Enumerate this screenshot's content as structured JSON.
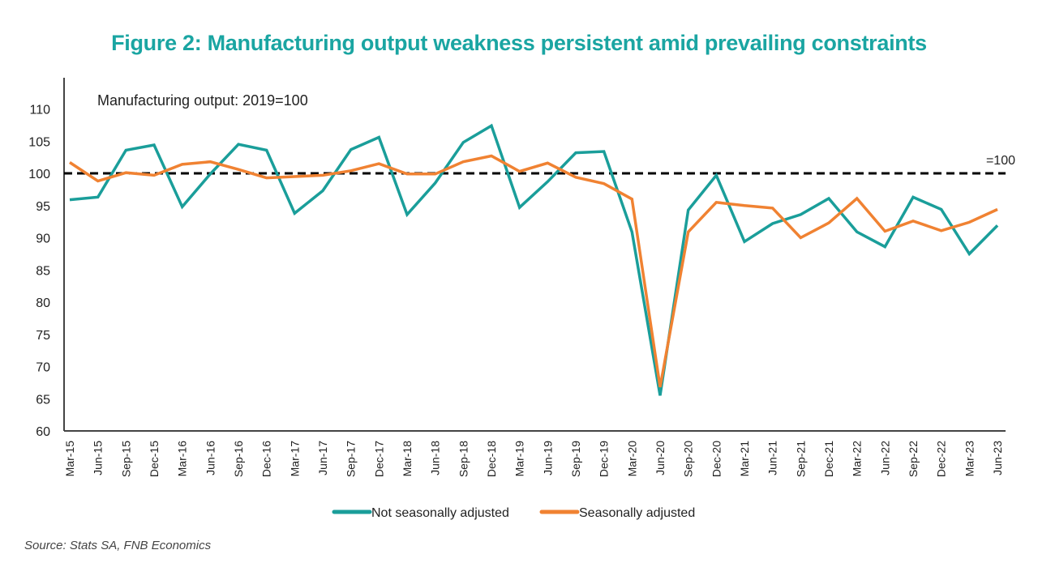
{
  "chart_data": {
    "type": "line",
    "title": "Figure 2: Manufacturing output weakness persistent amid prevailing constraints",
    "annotation": "Manufacturing output: 2019=100",
    "reference_line": {
      "value": 100,
      "label": "=100"
    },
    "xlabel": "",
    "ylabel": "",
    "ylim": [
      60,
      110
    ],
    "yticks": [
      60,
      65,
      70,
      75,
      80,
      85,
      90,
      95,
      100,
      105,
      110
    ],
    "x": [
      "Mar-15",
      "Jun-15",
      "Sep-15",
      "Dec-15",
      "Mar-16",
      "Jun-16",
      "Sep-16",
      "Dec-16",
      "Mar-17",
      "Jun-17",
      "Sep-17",
      "Dec-17",
      "Mar-18",
      "Jun-18",
      "Sep-18",
      "Dec-18",
      "Mar-19",
      "Jun-19",
      "Sep-19",
      "Dec-19",
      "Mar-20",
      "Jun-20",
      "Sep-20",
      "Dec-20",
      "Mar-21",
      "Jun-21",
      "Sep-21",
      "Dec-21",
      "Mar-22",
      "Jun-22",
      "Sep-22",
      "Dec-22",
      "Mar-23",
      "Jun-23"
    ],
    "series": [
      {
        "name": "Not seasonally adjusted",
        "color": "#1a9e9a",
        "values": [
          95.9,
          96.3,
          103.6,
          104.4,
          94.8,
          99.9,
          104.5,
          103.6,
          93.8,
          97.3,
          103.7,
          105.6,
          93.6,
          98.5,
          104.8,
          107.4,
          94.7,
          98.7,
          103.2,
          103.4,
          90.9,
          65.5,
          94.3,
          99.7,
          89.4,
          92.2,
          93.6,
          96.1,
          90.9,
          88.6,
          96.3,
          94.4,
          87.5,
          91.9
        ]
      },
      {
        "name": "Seasonally adjusted",
        "color": "#f08232",
        "values": [
          101.7,
          98.8,
          100.1,
          99.7,
          101.4,
          101.8,
          100.6,
          99.3,
          99.5,
          99.7,
          100.4,
          101.5,
          99.9,
          99.9,
          101.8,
          102.7,
          100.3,
          101.6,
          99.4,
          98.4,
          96.0,
          66.8,
          90.9,
          95.5,
          95.0,
          94.6,
          90.0,
          92.3,
          96.1,
          91.0,
          92.6,
          91.1,
          92.4,
          94.4
        ]
      }
    ],
    "grid": false,
    "legend": "bottom-center"
  },
  "source": "Source: Stats SA, FNB Economics"
}
